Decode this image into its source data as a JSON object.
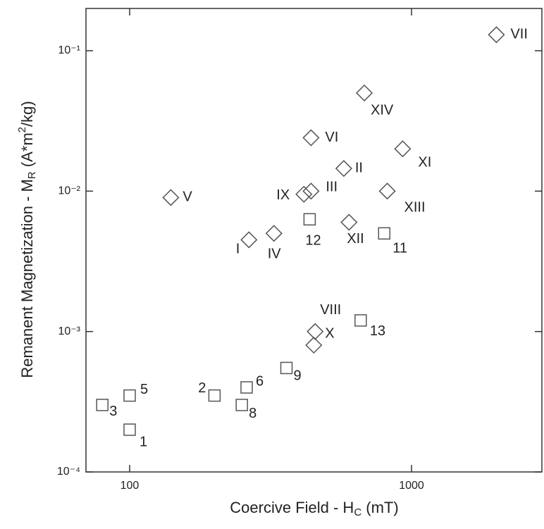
{
  "chart_data": {
    "type": "scatter",
    "xlabel": {
      "text": "Coercive Field - H",
      "sub": "C",
      "rest": " (mT)"
    },
    "ylabel": {
      "text": "Remanent Magnetization - M",
      "sub": "R",
      "mid": " (A*m",
      "sup": "2",
      "rest": "/kg)"
    },
    "xscale": "log",
    "yscale": "log",
    "xlim": [
      70,
      2900
    ],
    "ylim": [
      0.0001,
      0.2
    ],
    "xticks": [
      100,
      1000
    ],
    "yticks": [
      {
        "value": 0.0001,
        "label": "10⁻⁴"
      },
      {
        "value": 0.001,
        "label": "10⁻³"
      },
      {
        "value": 0.01,
        "label": "10⁻²"
      },
      {
        "value": 0.1,
        "label": "10⁻¹"
      }
    ],
    "series": [
      {
        "marker": "square",
        "color": "#555555",
        "x": [
          100,
          80,
          100,
          200,
          250,
          260,
          360,
          660,
          435,
          800
        ],
        "values": [
          0.0002,
          0.0003,
          0.00035,
          0.00035,
          0.0003,
          0.0004,
          0.00055,
          0.0012,
          0.0063,
          0.005
        ],
        "labels": [
          "1",
          "3",
          "5",
          "2",
          "8",
          "6",
          "9",
          "13",
          "12",
          "11"
        ]
      },
      {
        "marker": "diamond",
        "color": "#555555",
        "x": [
          2000,
          680,
          440,
          930,
          575,
          415,
          440,
          140,
          820,
          600,
          265,
          325,
          455,
          450
        ],
        "values": [
          0.13,
          0.05,
          0.024,
          0.02,
          0.0145,
          0.0095,
          0.01,
          0.009,
          0.01,
          0.006,
          0.0045,
          0.005,
          0.001,
          0.0008
        ],
        "labels": [
          "VII",
          "XIV",
          "VI",
          "XI",
          "II",
          "IX",
          "III",
          "V",
          "XIII",
          "XII",
          "I",
          "IV",
          "VIII",
          "X"
        ]
      }
    ]
  }
}
